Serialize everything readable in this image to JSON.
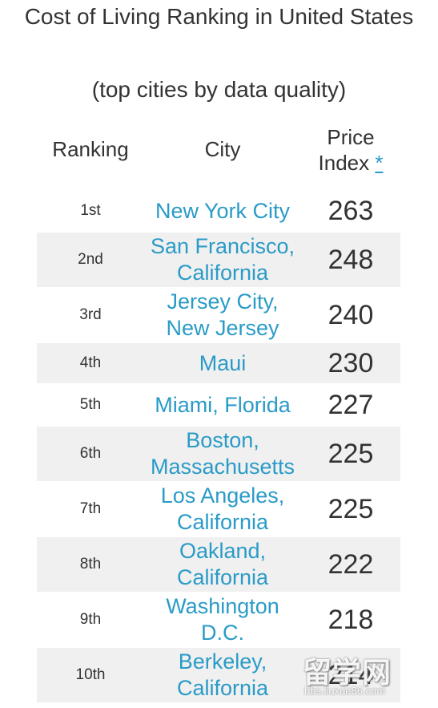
{
  "page": {
    "title": "Cost of Living Ranking in United States",
    "subtitle": "(top cities by data quality)"
  },
  "table": {
    "headers": {
      "ranking": "Ranking",
      "city": "City",
      "price_index_line1": "Price",
      "price_index_line2": "Index",
      "price_index_footnote": "*"
    },
    "rows": [
      {
        "rank": "1st",
        "city_lines": [
          "New York City"
        ],
        "price": "263"
      },
      {
        "rank": "2nd",
        "city_lines": [
          "San Francisco,",
          "California"
        ],
        "price": "248"
      },
      {
        "rank": "3rd",
        "city_lines": [
          "Jersey City,",
          "New Jersey"
        ],
        "price": "240"
      },
      {
        "rank": "4th",
        "city_lines": [
          "Maui"
        ],
        "price": "230"
      },
      {
        "rank": "5th",
        "city_lines": [
          "Miami, Florida"
        ],
        "price": "227"
      },
      {
        "rank": "6th",
        "city_lines": [
          "Boston,",
          "Massachusetts"
        ],
        "price": "225"
      },
      {
        "rank": "7th",
        "city_lines": [
          "Los Angeles,",
          "California"
        ],
        "price": "225"
      },
      {
        "rank": "8th",
        "city_lines": [
          "Oakland,",
          "California"
        ],
        "price": "222"
      },
      {
        "rank": "9th",
        "city_lines": [
          "Washington",
          "D.C."
        ],
        "price": "218"
      },
      {
        "rank": "10th",
        "city_lines": [
          "Berkeley,",
          "California"
        ],
        "price": "214"
      }
    ]
  },
  "colors": {
    "link": "#2a9bc7",
    "text": "#333333",
    "stripe": "#f0f0f0"
  },
  "watermark": {
    "main": "留学网",
    "url": "bbs.liuxue86.com"
  }
}
